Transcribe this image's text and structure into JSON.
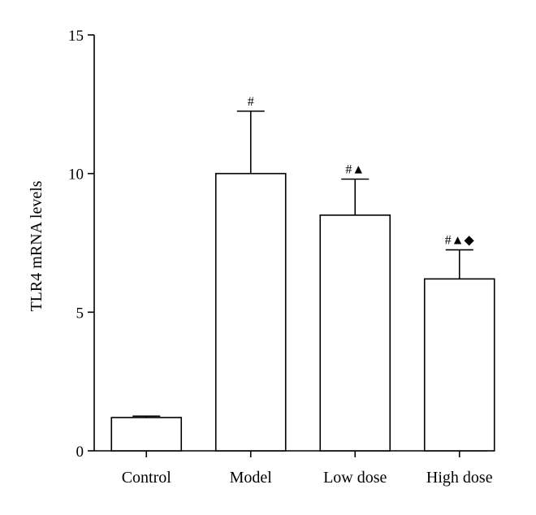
{
  "chart_data": {
    "type": "bar",
    "title": "",
    "xlabel": "",
    "ylabel": "TLR4 mRNA levels",
    "ylim": [
      0,
      15
    ],
    "yticks": [
      0,
      5,
      10,
      15
    ],
    "categories": [
      "Control",
      "Model",
      "Low dose",
      "High dose"
    ],
    "values": [
      1.2,
      10.0,
      8.5,
      6.2
    ],
    "errors": [
      0.05,
      2.25,
      1.3,
      1.05
    ],
    "annotations": [
      "",
      "#",
      "#▲",
      "#▲◆"
    ],
    "grid": false,
    "legend": "none",
    "bar_fill": "#ffffff",
    "bar_stroke": "#000000"
  }
}
